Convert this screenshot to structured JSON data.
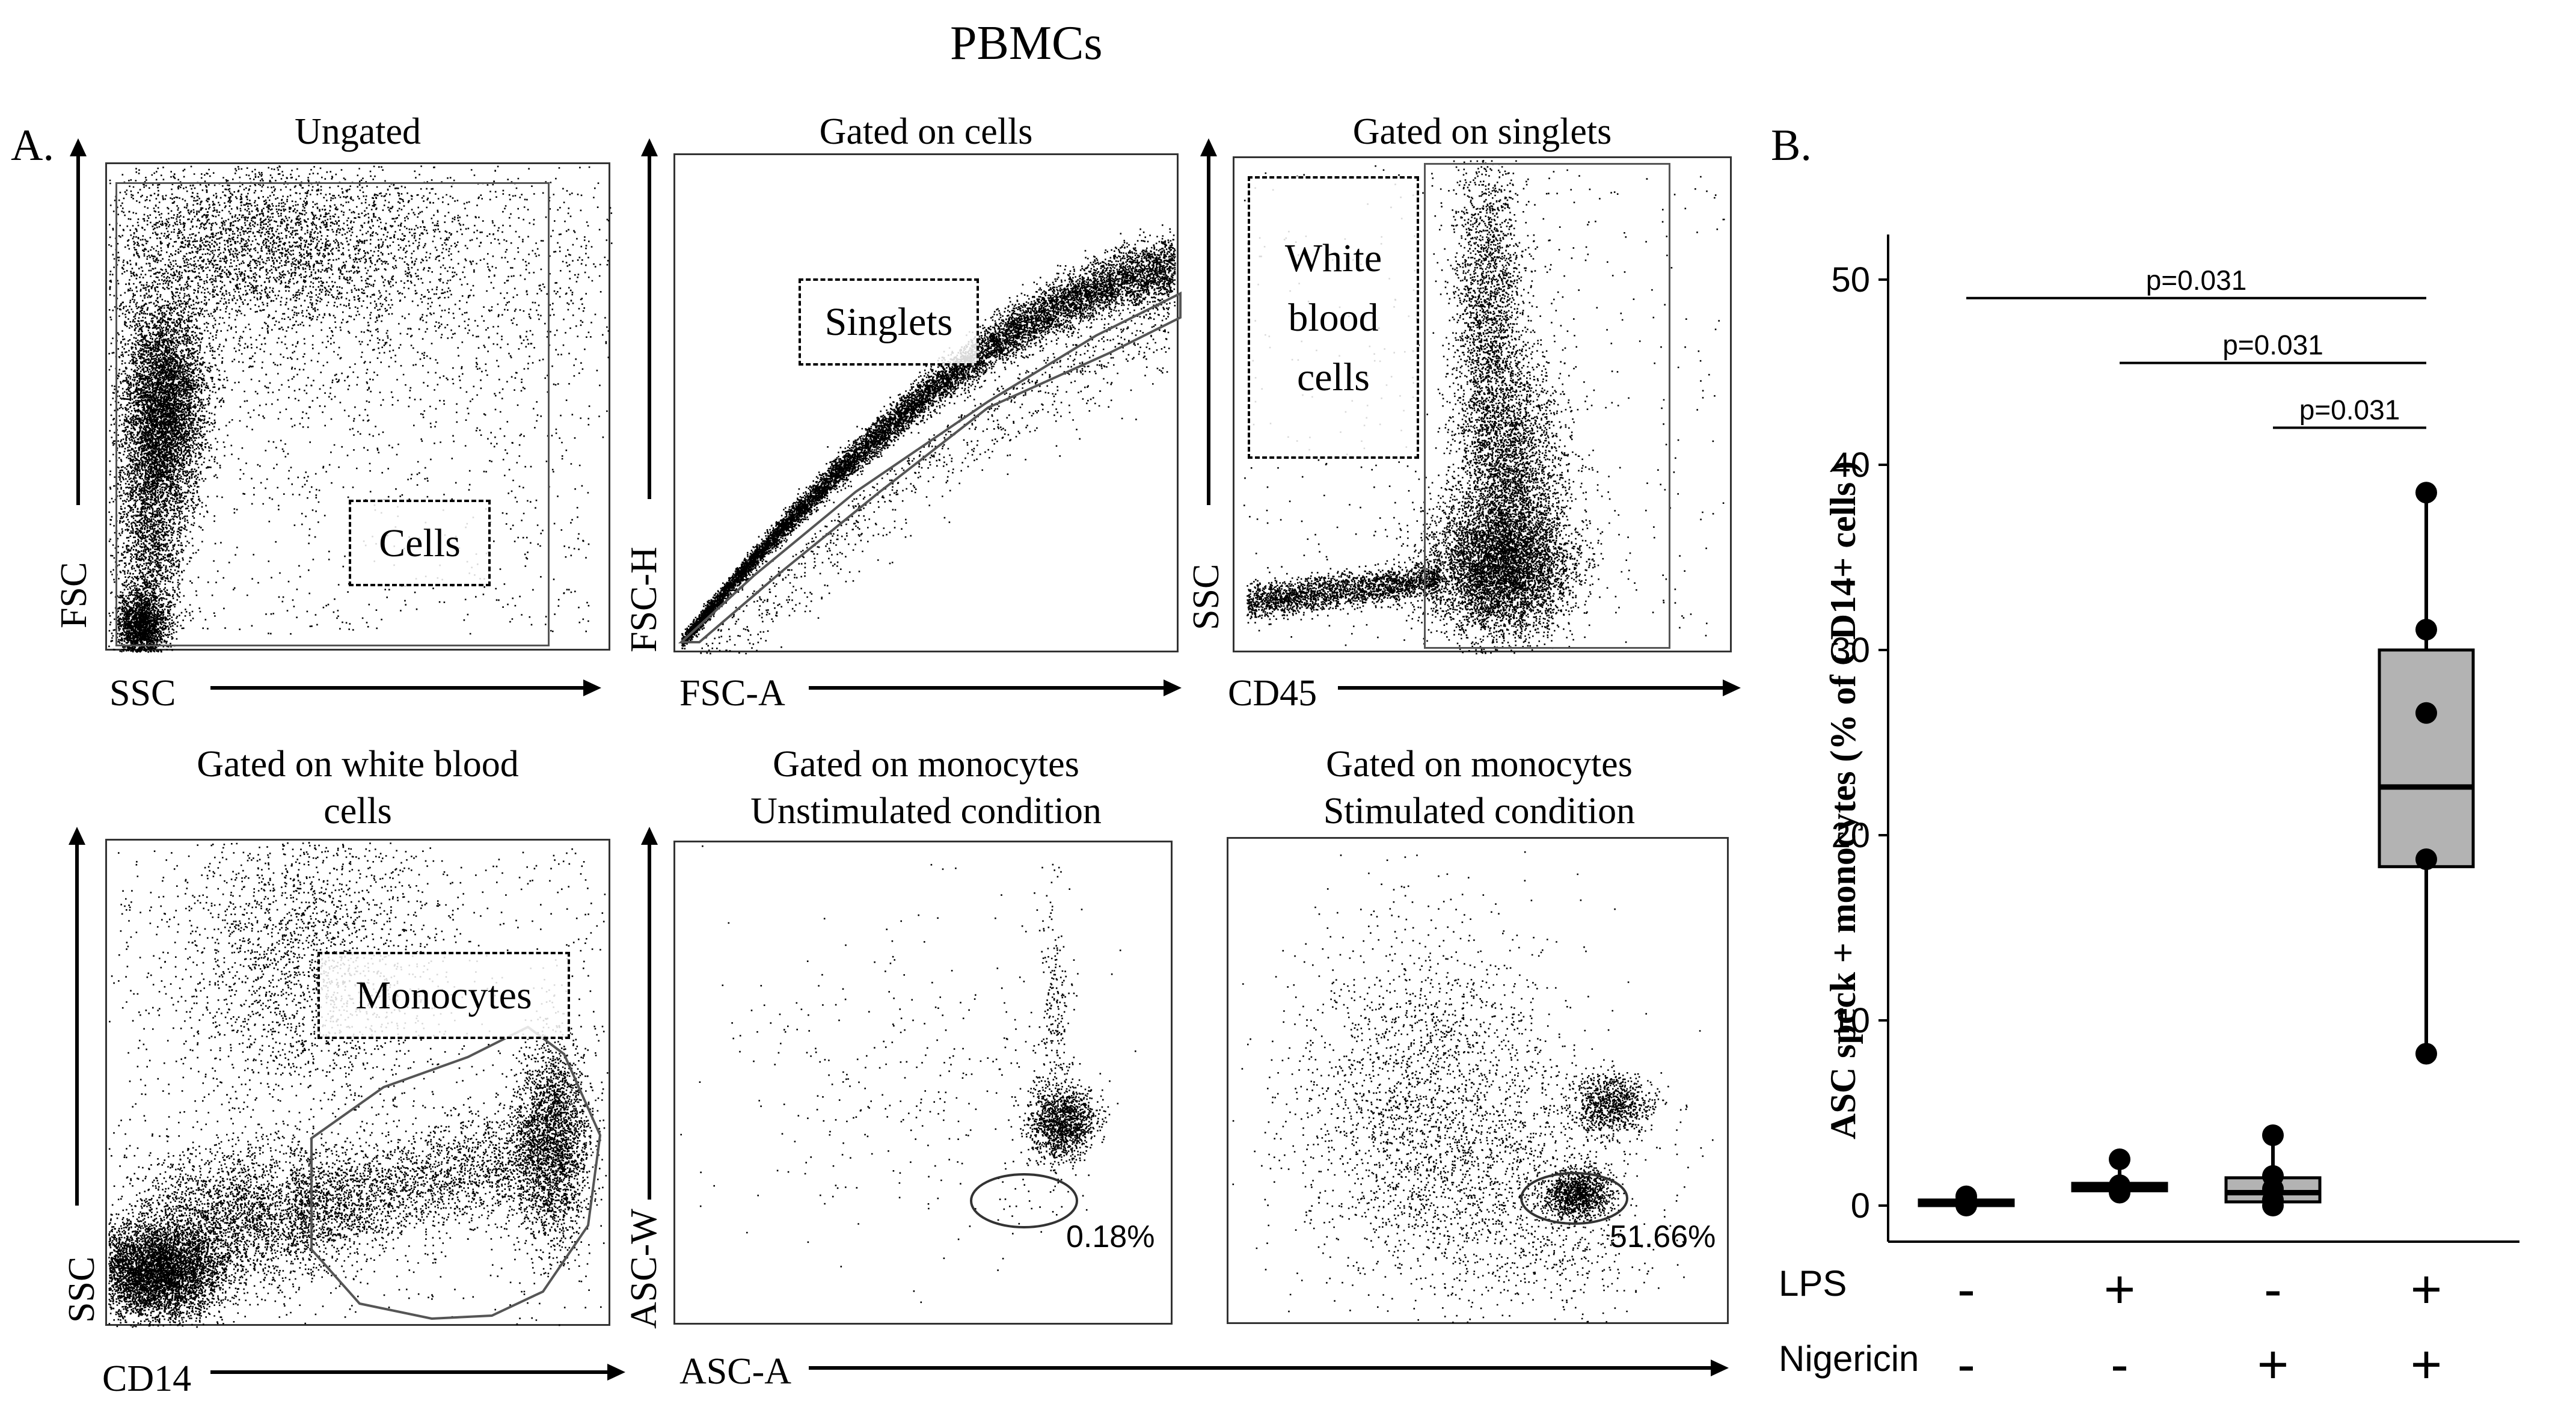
{
  "figure": {
    "main_title": "PBMCs",
    "panel_a_label": "A.",
    "panel_b_label": "B."
  },
  "flow_plots": [
    {
      "title": "Ungated",
      "x_label": "SSC",
      "y_label": "FSC",
      "gate_label": "Cells"
    },
    {
      "title": "Gated on cells",
      "x_label": "FSC-A",
      "y_label": "FSC-H",
      "gate_label": "Singlets"
    },
    {
      "title": "Gated on singlets",
      "x_label": "CD45",
      "y_label": "SSC",
      "gate_label_lines": [
        "White",
        "blood",
        "cells"
      ]
    },
    {
      "title_lines": [
        "Gated on white blood",
        "cells"
      ],
      "x_label": "CD14",
      "y_label": "SSC",
      "gate_label": "Monocytes"
    },
    {
      "title_lines": [
        "Gated on monocytes",
        "Unstimulated condition"
      ],
      "y_label": "ASC-W",
      "percent": "0.18%"
    },
    {
      "title_lines": [
        "Gated on monocytes",
        "Stimulated condition"
      ],
      "percent": "51.66%"
    }
  ],
  "shared_x_label": "ASC-A",
  "chart_data": {
    "type": "boxplot",
    "ylabel": "ASC speck + monocytes (% of CD14+ cells )",
    "ylim": [
      0,
      50
    ],
    "yticks": [
      0,
      10,
      20,
      30,
      40,
      50
    ],
    "conditions": [
      {
        "LPS": "-",
        "Nigericin": "-"
      },
      {
        "LPS": "+",
        "Nigericin": "-"
      },
      {
        "LPS": "-",
        "Nigericin": "+"
      },
      {
        "LPS": "+",
        "Nigericin": "+"
      }
    ],
    "row_labels": [
      "LPS",
      "Nigericin"
    ],
    "groups": [
      {
        "q1": 0.0,
        "median": 0.2,
        "q3": 0.3,
        "min": 0.0,
        "max": 0.5,
        "points": [
          0.0,
          0.1,
          0.3,
          0.5,
          0.2
        ]
      },
      {
        "q1": 0.8,
        "median": 1.0,
        "q3": 1.2,
        "min": 0.7,
        "max": 2.5,
        "points": [
          0.7,
          0.9,
          1.1,
          2.5,
          1.0
        ]
      },
      {
        "q1": 0.2,
        "median": 0.7,
        "q3": 1.5,
        "min": 0.0,
        "max": 3.8,
        "points": [
          0.0,
          0.3,
          0.9,
          1.6,
          3.8
        ]
      },
      {
        "q1": 18.3,
        "median": 22.6,
        "q3": 30.0,
        "min": 8.2,
        "max": 38.5,
        "points": [
          8.2,
          18.7,
          26.6,
          31.1,
          38.5
        ]
      }
    ],
    "box_fill": "#b3b3b3",
    "significance": [
      {
        "from": 1,
        "to": 4,
        "label": "p=0.031",
        "y": 49.0
      },
      {
        "from": 2,
        "to": 4,
        "label": "p=0.031",
        "y": 45.5
      },
      {
        "from": 3,
        "to": 4,
        "label": "p=0.031",
        "y": 42.0
      }
    ]
  }
}
